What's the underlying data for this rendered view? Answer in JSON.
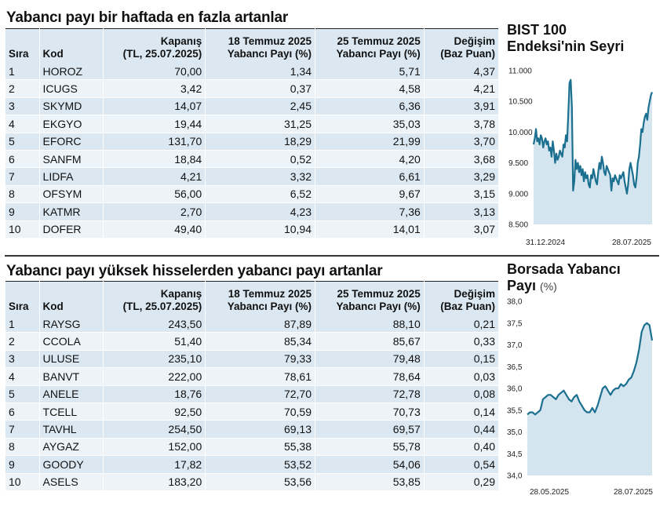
{
  "table1": {
    "title": "Yabancı payı bir haftada en fazla artanlar",
    "headers": {
      "sira": "Sıra",
      "kod": "Kod",
      "kapanis": [
        "Kapanış",
        "(TL, 25.07.2025)"
      ],
      "y1": [
        "18 Temmuz 2025",
        "Yabancı Payı (%)"
      ],
      "y2": [
        "25 Temmuz 2025",
        "Yabancı Payı (%)"
      ],
      "degisim": [
        "Değişim",
        "(Baz Puan)"
      ]
    },
    "rows": [
      [
        "1",
        "HOROZ",
        "70,00",
        "1,34",
        "5,71",
        "4,37"
      ],
      [
        "2",
        "ICUGS",
        "3,42",
        "0,37",
        "4,58",
        "4,21"
      ],
      [
        "3",
        "SKYMD",
        "14,07",
        "2,45",
        "6,36",
        "3,91"
      ],
      [
        "4",
        "EKGYO",
        "19,44",
        "31,25",
        "35,03",
        "3,78"
      ],
      [
        "5",
        "EFORC",
        "131,70",
        "18,29",
        "21,99",
        "3,70"
      ],
      [
        "6",
        "SANFM",
        "18,84",
        "0,52",
        "4,20",
        "3,68"
      ],
      [
        "7",
        "LIDFA",
        "4,21",
        "3,32",
        "6,61",
        "3,29"
      ],
      [
        "8",
        "OFSYM",
        "56,00",
        "6,52",
        "9,67",
        "3,15"
      ],
      [
        "9",
        "KATMR",
        "2,70",
        "4,23",
        "7,36",
        "3,13"
      ],
      [
        "10",
        "DOFER",
        "49,40",
        "10,94",
        "14,01",
        "3,07"
      ]
    ]
  },
  "table2": {
    "title": "Yabancı payı yüksek hisselerden yabancı payı artanlar",
    "headers": {
      "sira": "Sıra",
      "kod": "Kod",
      "kapanis": [
        "Kapanış",
        "(TL, 25.07.2025)"
      ],
      "y1": [
        "18 Temmuz 2025",
        "Yabancı Payı (%)"
      ],
      "y2": [
        "25 Temmuz 2025",
        "Yabancı Payı (%)"
      ],
      "degisim": [
        "Değişim",
        "(Baz Puan)"
      ]
    },
    "rows": [
      [
        "1",
        "RAYSG",
        "243,50",
        "87,89",
        "88,10",
        "0,21"
      ],
      [
        "2",
        "CCOLA",
        "51,40",
        "85,34",
        "85,67",
        "0,33"
      ],
      [
        "3",
        "ULUSE",
        "235,10",
        "79,33",
        "79,48",
        "0,15"
      ],
      [
        "4",
        "BANVT",
        "222,00",
        "78,61",
        "78,64",
        "0,03"
      ],
      [
        "5",
        "ANELE",
        "18,76",
        "72,70",
        "72,78",
        "0,08"
      ],
      [
        "6",
        "TCELL",
        "92,50",
        "70,59",
        "70,73",
        "0,14"
      ],
      [
        "7",
        "TAVHL",
        "254,50",
        "69,13",
        "69,57",
        "0,44"
      ],
      [
        "8",
        "AYGAZ",
        "152,00",
        "55,38",
        "55,78",
        "0,40"
      ],
      [
        "9",
        "GOODY",
        "17,82",
        "53,52",
        "54,06",
        "0,54"
      ],
      [
        "10",
        "ASELS",
        "183,20",
        "53,56",
        "53,85",
        "0,29"
      ]
    ]
  },
  "colors": {
    "fill": "#d4e5f0",
    "line": "#1b6f8f",
    "row_dark": "#dbe8f2",
    "row_light": "#edf4f9"
  },
  "chart_data": [
    {
      "type": "area",
      "title": "BIST 100",
      "subtitle": "Endeksi'nin Seyri",
      "yticks": [
        "11.000",
        "10.500",
        "10.000",
        "9.500",
        "9.000",
        "8.500"
      ],
      "ytick_values": [
        11000,
        10500,
        10000,
        9500,
        9000,
        8500
      ],
      "ylim": [
        8500,
        11000
      ],
      "xlabels": [
        "31.12.2024",
        "28.07.2025"
      ],
      "values": [
        9800,
        9900,
        10050,
        9850,
        9900,
        9800,
        9950,
        9900,
        9750,
        9850,
        9900,
        9800,
        9850,
        9700,
        9750,
        9600,
        9850,
        9700,
        9500,
        9650,
        9550,
        9600,
        9700,
        9650,
        9600,
        9800,
        9750,
        9950,
        9850,
        10300,
        10800,
        10850,
        10400,
        9050,
        9200,
        9550,
        9400,
        9500,
        9350,
        9450,
        9300,
        9400,
        9200,
        9350,
        9250,
        9300,
        9150,
        9100,
        9300,
        9250,
        9400,
        9300,
        9200,
        9150,
        9350,
        9500,
        9400,
        9600,
        9500,
        9350,
        9300,
        9450,
        9400,
        9350,
        9300,
        9050,
        9250,
        9200,
        9300,
        9250,
        9200,
        9150,
        9300,
        9250,
        9300,
        9350,
        9200,
        9100,
        9000,
        9150,
        9400,
        9500,
        9400,
        9300,
        9150,
        9100,
        9250,
        9500,
        9600,
        9800,
        10050,
        10000,
        10150,
        10250,
        10300,
        10200,
        10400,
        10500,
        10600,
        10650
      ]
    },
    {
      "type": "area",
      "title": "Borsada Yabancı",
      "subtitle": "Payı",
      "unit": "(%)",
      "yticks": [
        "38,0",
        "37,5",
        "37,0",
        "36,5",
        "36,0",
        "35,5",
        "35,0",
        "34,5",
        "34,0"
      ],
      "ytick_values": [
        38.0,
        37.5,
        37.0,
        36.5,
        36.0,
        35.5,
        35.0,
        34.5,
        34.0
      ],
      "ylim": [
        34.0,
        38.0
      ],
      "xlabels": [
        "28.05.2025",
        "28.07.2025"
      ],
      "values": [
        35.4,
        35.45,
        35.45,
        35.4,
        35.45,
        35.5,
        35.75,
        35.8,
        35.85,
        35.85,
        35.8,
        35.75,
        35.85,
        35.9,
        35.95,
        35.85,
        35.75,
        35.7,
        35.8,
        35.85,
        35.7,
        35.6,
        35.5,
        35.45,
        35.45,
        35.55,
        35.45,
        35.6,
        35.8,
        36.0,
        36.05,
        35.95,
        35.85,
        35.95,
        36.0,
        36.0,
        36.1,
        36.05,
        36.1,
        36.2,
        36.25,
        36.4,
        36.6,
        36.9,
        37.3,
        37.45,
        37.5,
        37.45,
        37.1
      ]
    }
  ]
}
